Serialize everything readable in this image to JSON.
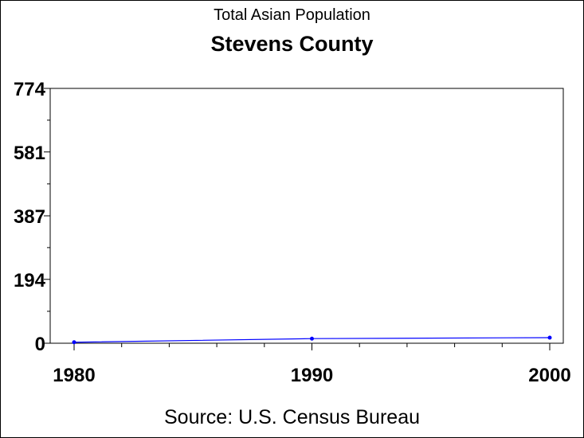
{
  "chart_data": {
    "type": "line",
    "title": "Stevens County",
    "subtitle": "Total Asian Population",
    "footnote": "Source: U.S. Census Bureau",
    "xlabel": "",
    "ylabel": "",
    "x": [
      1980,
      1990,
      2000
    ],
    "series": [
      {
        "values": [
          3,
          14,
          17
        ]
      }
    ],
    "xlim": [
      1980,
      2000
    ],
    "ylim": [
      0,
      774
    ],
    "x_ticks": [
      "1980",
      "1990",
      "2000"
    ],
    "y_ticks": [
      "0",
      "194",
      "387",
      "581",
      "774"
    ],
    "y_tick_values": [
      0,
      194,
      387,
      581,
      774
    ],
    "x_tick_values": [
      1980,
      1990,
      2000
    ],
    "line_color": "#0000ff",
    "grid": false
  }
}
